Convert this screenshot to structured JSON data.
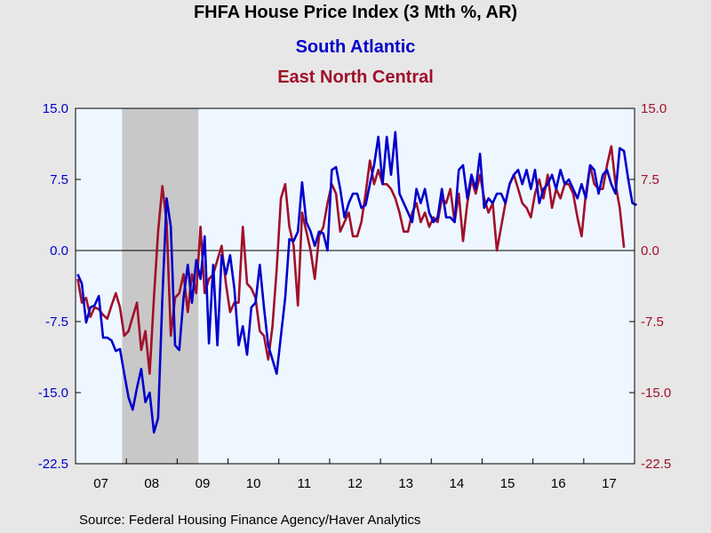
{
  "chart_data": {
    "type": "line",
    "title": "FHFA House Price Index (3 Mth %, AR)",
    "xlabel": "",
    "ylabel": "",
    "ylim": [
      -22.5,
      15.0
    ],
    "y_ticks": [
      "15.0",
      "7.5",
      "0.0",
      "-7.5",
      "-15.0",
      "-22.5"
    ],
    "y_tick_values": [
      15.0,
      7.5,
      0.0,
      -7.5,
      -15.0,
      -22.5
    ],
    "x_range": [
      "2007-01",
      "2017-12"
    ],
    "x_tick_labels": [
      "07",
      "08",
      "09",
      "10",
      "11",
      "12",
      "13",
      "14",
      "15",
      "16",
      "17"
    ],
    "recession_shading": {
      "start": "2007-12",
      "end": "2009-06",
      "color": "#c8c8c8"
    },
    "grid": false,
    "zero_line": true,
    "colors": {
      "background": "#e7e7e7",
      "plot_background": "#eef6ff",
      "series_1": "#0000cc",
      "series_2": "#a0102a"
    },
    "series": [
      {
        "name": "South Atlantic",
        "color": "#0000cc",
        "x_start": "2007-01",
        "frequency": "monthly",
        "values": [
          -2.5,
          -3.5,
          -7.6,
          -6.0,
          -5.8,
          -4.8,
          -9.2,
          -9.2,
          -9.5,
          -10.6,
          -10.4,
          -13.0,
          -15.5,
          -16.8,
          -14.5,
          -12.5,
          -16.0,
          -15.0,
          -19.2,
          -17.7,
          -5.0,
          5.5,
          2.5,
          -10.0,
          -10.5,
          -5.0,
          -1.5,
          -5.5,
          -1.0,
          -3.0,
          1.5,
          -9.8,
          -1.5,
          -10.0,
          -0.5,
          -2.5,
          -0.5,
          -4.0,
          -10.0,
          -8.0,
          -11.0,
          -6.0,
          -5.5,
          -1.5,
          -6.0,
          -10.0,
          -11.5,
          -13.0,
          -9.0,
          -5.0,
          1.2,
          1.0,
          2.0,
          7.2,
          3.0,
          2.0,
          0.5,
          2.0,
          1.8,
          0.0,
          8.5,
          8.8,
          6.5,
          3.5,
          5.0,
          6.0,
          6.0,
          4.5,
          4.8,
          7.0,
          9.0,
          12.0,
          7.0,
          12.0,
          8.0,
          12.5,
          6.0,
          5.0,
          4.0,
          3.0,
          6.5,
          5.0,
          6.5,
          4.0,
          3.0,
          3.5,
          6.5,
          3.5,
          3.5,
          3.0,
          8.5,
          9.0,
          5.5,
          8.0,
          6.5,
          10.2,
          4.5,
          5.5,
          5.0,
          6.0,
          6.0,
          5.0,
          7.0,
          8.0,
          8.5,
          7.0,
          8.5,
          6.5,
          8.5,
          5.0,
          6.5,
          7.0,
          8.0,
          6.5,
          8.5,
          7.0,
          7.5,
          6.5,
          5.5,
          7.0,
          5.5,
          9.0,
          8.5,
          6.0,
          8.0,
          8.5,
          7.0,
          6.0,
          10.8,
          10.5,
          7.5,
          5.0,
          4.8
        ]
      },
      {
        "name": "East North Central",
        "color": "#a0102a",
        "x_start": "2007-01",
        "frequency": "monthly",
        "values": [
          -3.0,
          -5.5,
          -5.0,
          -7.0,
          -6.0,
          -6.2,
          -6.8,
          -7.2,
          -5.8,
          -4.5,
          -6.0,
          -9.0,
          -8.5,
          -7.0,
          -5.5,
          -10.5,
          -8.5,
          -13.0,
          -5.0,
          2.0,
          6.8,
          3.0,
          -9.0,
          -5.0,
          -4.5,
          -2.5,
          -6.5,
          -2.5,
          -4.5,
          2.5,
          -4.5,
          -3.0,
          -2.5,
          -1.0,
          0.5,
          -3.5,
          -6.5,
          -5.5,
          -5.5,
          2.5,
          -3.5,
          -4.0,
          -5.0,
          -8.5,
          -9.0,
          -11.5,
          -8.0,
          -2.0,
          5.5,
          7.0,
          2.5,
          0.5,
          -5.8,
          4.0,
          2.0,
          0.0,
          -3.0,
          1.5,
          2.5,
          5.0,
          7.0,
          6.0,
          2.0,
          3.0,
          4.0,
          1.5,
          1.5,
          3.0,
          6.0,
          9.5,
          7.0,
          8.5,
          7.0,
          7.0,
          6.5,
          5.5,
          4.0,
          2.0,
          2.0,
          4.0,
          5.0,
          3.0,
          4.0,
          2.5,
          3.5,
          3.0,
          5.5,
          5.0,
          6.5,
          3.0,
          6.0,
          1.0,
          5.0,
          7.5,
          6.0,
          8.0,
          5.5,
          4.0,
          5.0,
          0.0,
          2.5,
          5.0,
          7.0,
          8.0,
          6.5,
          5.0,
          4.5,
          3.5,
          6.0,
          7.5,
          5.5,
          8.0,
          4.5,
          6.5,
          5.5,
          7.0,
          7.0,
          6.0,
          3.5,
          1.5,
          6.0,
          9.0,
          7.0,
          6.5,
          6.5,
          9.0,
          11.0,
          7.0,
          4.5,
          0.3
        ]
      }
    ],
    "source": "Source:  Federal Housing Finance Agency/Haver Analytics"
  }
}
